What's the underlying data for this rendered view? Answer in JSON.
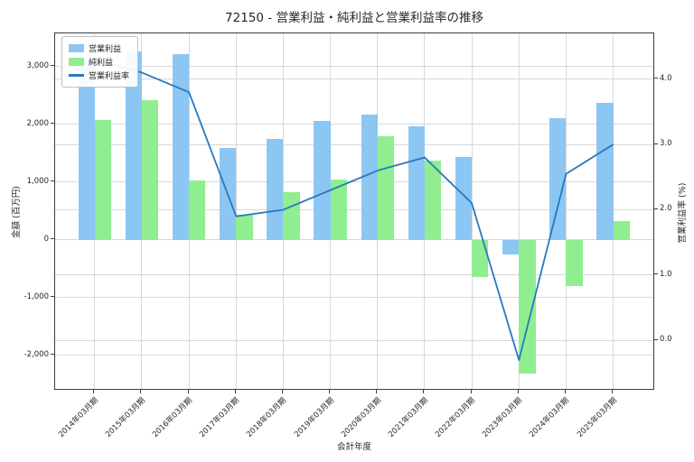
{
  "title": "72150 - 営業利益・純利益と営業利益率の推移",
  "axes": {
    "y_left_label": "金額 (百万円)",
    "y_right_label": "営業利益率 (%)",
    "x_label": "会計年度",
    "y_left_ticks": [
      {
        "label": "3,000",
        "value": 3000
      },
      {
        "label": "2,000",
        "value": 2000
      },
      {
        "label": "1,000",
        "value": 1000
      },
      {
        "label": "0",
        "value": 0
      },
      {
        "label": "-1,000",
        "value": -1000
      },
      {
        "label": "-2,000",
        "value": -2000
      }
    ],
    "y_right_ticks": [
      {
        "label": "4.0",
        "value": 4.0
      },
      {
        "label": "3.0",
        "value": 3.0
      },
      {
        "label": "2.0",
        "value": 2.0
      },
      {
        "label": "1.0",
        "value": 1.0
      },
      {
        "label": "0.0",
        "value": 0.0
      }
    ]
  },
  "legend": [
    {
      "label": "営業利益",
      "type": "bar",
      "color": "#8cc6f3"
    },
    {
      "label": "純利益",
      "type": "bar",
      "color": "#90ee90"
    },
    {
      "label": "営業利益率",
      "type": "line",
      "color": "#2878be"
    }
  ],
  "colors": {
    "operating_profit_bar": "#8cc6f3",
    "net_profit_bar": "#90ee90",
    "margin_line": "#2878be",
    "grid": "#d8d8d8"
  },
  "chart_data": {
    "type": "bar",
    "title": "72150 - 営業利益・純利益と営業利益率の推移",
    "xlabel": "会計年度",
    "ylabel_left": "金額 (百万円)",
    "ylabel_right": "営業利益率 (%)",
    "categories": [
      "2014年03月期",
      "2015年03月期",
      "2016年03月期",
      "2017年03月期",
      "2018年03月期",
      "2019年03月期",
      "2020年03月期",
      "2021年03月期",
      "2022年03月期",
      "2023年03月期",
      "2024年03月期",
      "2025年03月期"
    ],
    "series": [
      {
        "name": "営業利益",
        "type": "bar",
        "axis": "left",
        "color": "#8cc6f3",
        "values": [
          3100,
          3270,
          3220,
          1590,
          1750,
          2060,
          2170,
          1960,
          1440,
          -250,
          2100,
          2370
        ]
      },
      {
        "name": "純利益",
        "type": "bar",
        "axis": "left",
        "color": "#90ee90",
        "values": [
          2080,
          2420,
          1030,
          430,
          820,
          1040,
          1800,
          1370,
          -640,
          -2320,
          -810,
          320
        ]
      },
      {
        "name": "営業利益率",
        "type": "line",
        "axis": "right",
        "color": "#2878be",
        "values": [
          4.3,
          4.1,
          3.8,
          1.9,
          2.0,
          2.3,
          2.6,
          2.8,
          2.1,
          -0.3,
          2.55,
          3.0
        ]
      }
    ],
    "ylim_left": [
      -2617,
      3578
    ],
    "ylim_right": [
      -0.77,
      4.7
    ],
    "xlim": [
      -0.84,
      11.89
    ],
    "grid": true,
    "legend_position": "upper left"
  }
}
